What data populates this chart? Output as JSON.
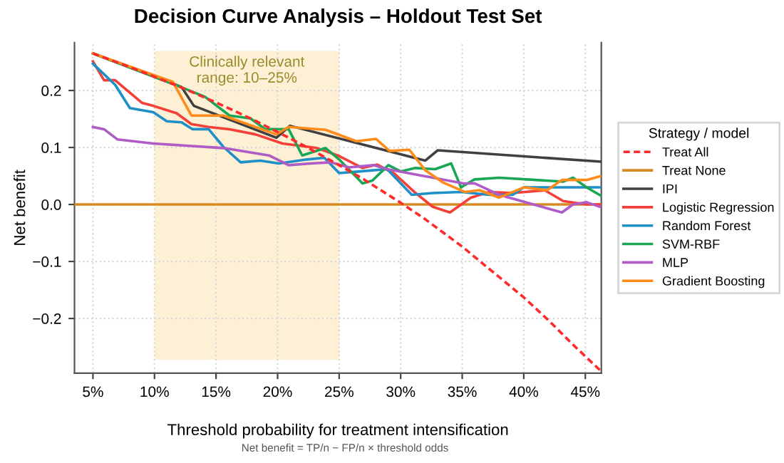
{
  "chart_data": {
    "type": "line",
    "title": "Decision Curve Analysis – Holdout Test Set",
    "xlabel": "Threshold probability for treatment intensification",
    "ylabel": "Net benefit",
    "legend_title": "Strategy / model",
    "legend": "right",
    "grid": true,
    "line_style": "solid",
    "annotations": [
      "Net benefit = TP/n − FP/n × threshold odds"
    ],
    "bands": [
      {
        "axis": "x",
        "from": 10,
        "to": 25,
        "label": "Clinically relevant\nrange: 10–25%",
        "color": "#fdf0d5"
      }
    ],
    "xlim": [
      3.5,
      46.3
    ],
    "ylim": [
      -0.296,
      0.284
    ],
    "xticks": [
      {
        "value": 5,
        "label": "5%"
      },
      {
        "value": 10,
        "label": "10%"
      },
      {
        "value": 15,
        "label": "15%"
      },
      {
        "value": 20,
        "label": "20%"
      },
      {
        "value": 25,
        "label": "25%"
      },
      {
        "value": 30,
        "label": "30%"
      },
      {
        "value": 35,
        "label": "35%"
      },
      {
        "value": 40,
        "label": "40%"
      },
      {
        "value": 45,
        "label": "45%"
      }
    ],
    "yticks": [
      {
        "value": -0.2,
        "label": "−0.2"
      },
      {
        "value": -0.1,
        "label": "−0.1"
      },
      {
        "value": 0,
        "label": "0.0"
      },
      0.1,
      0.2
    ],
    "series": [
      {
        "name": "Treat All",
        "color": "#ff2a2a",
        "line_style": "dashed",
        "x": [
          5,
          8,
          10,
          12,
          15,
          18,
          20,
          22,
          25,
          27,
          30,
          32,
          35,
          40,
          42,
          44,
          46.3
        ],
        "values": [
          0.265,
          0.241,
          0.224,
          0.207,
          0.179,
          0.149,
          0.127,
          0.105,
          0.069,
          0.044,
          0.003,
          -0.026,
          -0.074,
          -0.163,
          -0.203,
          -0.246,
          -0.293
        ]
      },
      {
        "name": "Treat None",
        "color": "#d98b20",
        "x": [
          3.5,
          46.3
        ],
        "values": [
          0,
          0
        ]
      },
      {
        "name": "IPI",
        "color": "#404040",
        "x": [
          5,
          12.2,
          13.2,
          19.9,
          21,
          32,
          33,
          46.3
        ],
        "values": [
          0.265,
          0.206,
          0.173,
          0.117,
          0.138,
          0.077,
          0.095,
          0.075
        ]
      },
      {
        "name": "Logistic Regression",
        "color": "#f5403a",
        "x": [
          5,
          5.9,
          6.8,
          9,
          9.9,
          11.8,
          13,
          14.4,
          16.1,
          18.2,
          20.4,
          23.2,
          25,
          26.9,
          28.1,
          29.5,
          31.1,
          32.6,
          34,
          35.7,
          37.2,
          39.1,
          41.7,
          43.2,
          45.1,
          46.3
        ],
        "values": [
          0.251,
          0.218,
          0.218,
          0.178,
          0.173,
          0.16,
          0.141,
          0.136,
          0.132,
          0.123,
          0.107,
          0.099,
          0.085,
          0.064,
          0.07,
          0.054,
          0.022,
          -0.004,
          -0.014,
          0.012,
          0.022,
          0.02,
          0.025,
          0.006,
          0,
          0
        ]
      },
      {
        "name": "Random Forest",
        "color": "#1f8fc8",
        "x": [
          5,
          6.8,
          8,
          9.9,
          11,
          12.2,
          13.1,
          14.4,
          15.6,
          17,
          18.6,
          20.1,
          22.4,
          23.8,
          25,
          26.7,
          28.9,
          30.9,
          32.6,
          34.9,
          37.2,
          39.1,
          40,
          45.1,
          46.3
        ],
        "values": [
          0.247,
          0.21,
          0.169,
          0.162,
          0.146,
          0.144,
          0.132,
          0.132,
          0.101,
          0.074,
          0.077,
          0.072,
          0.079,
          0.082,
          0.055,
          0.058,
          0.062,
          0.017,
          0.02,
          0.022,
          0.017,
          0.017,
          0.03,
          0.03,
          0.03
        ]
      },
      {
        "name": "SVM-RBF",
        "color": "#1aa655",
        "x": [
          5,
          11.9,
          14.1,
          16.1,
          17.8,
          19,
          20.9,
          22,
          23.9,
          25,
          26.9,
          27.7,
          29,
          30,
          31.2,
          32.8,
          34.1,
          34.9,
          36,
          38,
          43.2,
          44,
          45.1,
          46.3
        ],
        "values": [
          0.265,
          0.208,
          0.189,
          0.156,
          0.151,
          0.132,
          0.132,
          0.086,
          0.099,
          0.079,
          0.037,
          0.042,
          0.069,
          0.058,
          0.064,
          0.062,
          0.072,
          0.03,
          0.044,
          0.047,
          0.04,
          0.047,
          0.03,
          0.015
        ]
      },
      {
        "name": "MLP",
        "color": "#b05cc6",
        "x": [
          5,
          5.9,
          7,
          9.9,
          15.6,
          19.3,
          20.9,
          22.7,
          24.3,
          25.8,
          27.8,
          28.9,
          35.1,
          36,
          38,
          43.1,
          44,
          45.1,
          46.3
        ],
        "values": [
          0.136,
          0.132,
          0.114,
          0.107,
          0.099,
          0.086,
          0.069,
          0.072,
          0.074,
          0.065,
          0.069,
          0.062,
          0.037,
          0.037,
          0.017,
          -0.014,
          0,
          0.004,
          -0.005
        ]
      },
      {
        "name": "Gradient Boosting",
        "color": "#ff8c1a",
        "x": [
          5,
          11.5,
          13,
          15.6,
          19.9,
          20.9,
          23.9,
          26.4,
          28,
          29.1,
          30.7,
          32,
          33.4,
          35.2,
          36.4,
          38,
          40,
          41.9,
          43.1,
          45.1,
          46.3
        ],
        "values": [
          0.265,
          0.215,
          0.156,
          0.156,
          0.123,
          0.136,
          0.131,
          0.111,
          0.115,
          0.094,
          0.096,
          0.06,
          0.039,
          0.022,
          0.025,
          0.012,
          0.03,
          0.025,
          0.043,
          0.043,
          0.05
        ]
      }
    ]
  }
}
